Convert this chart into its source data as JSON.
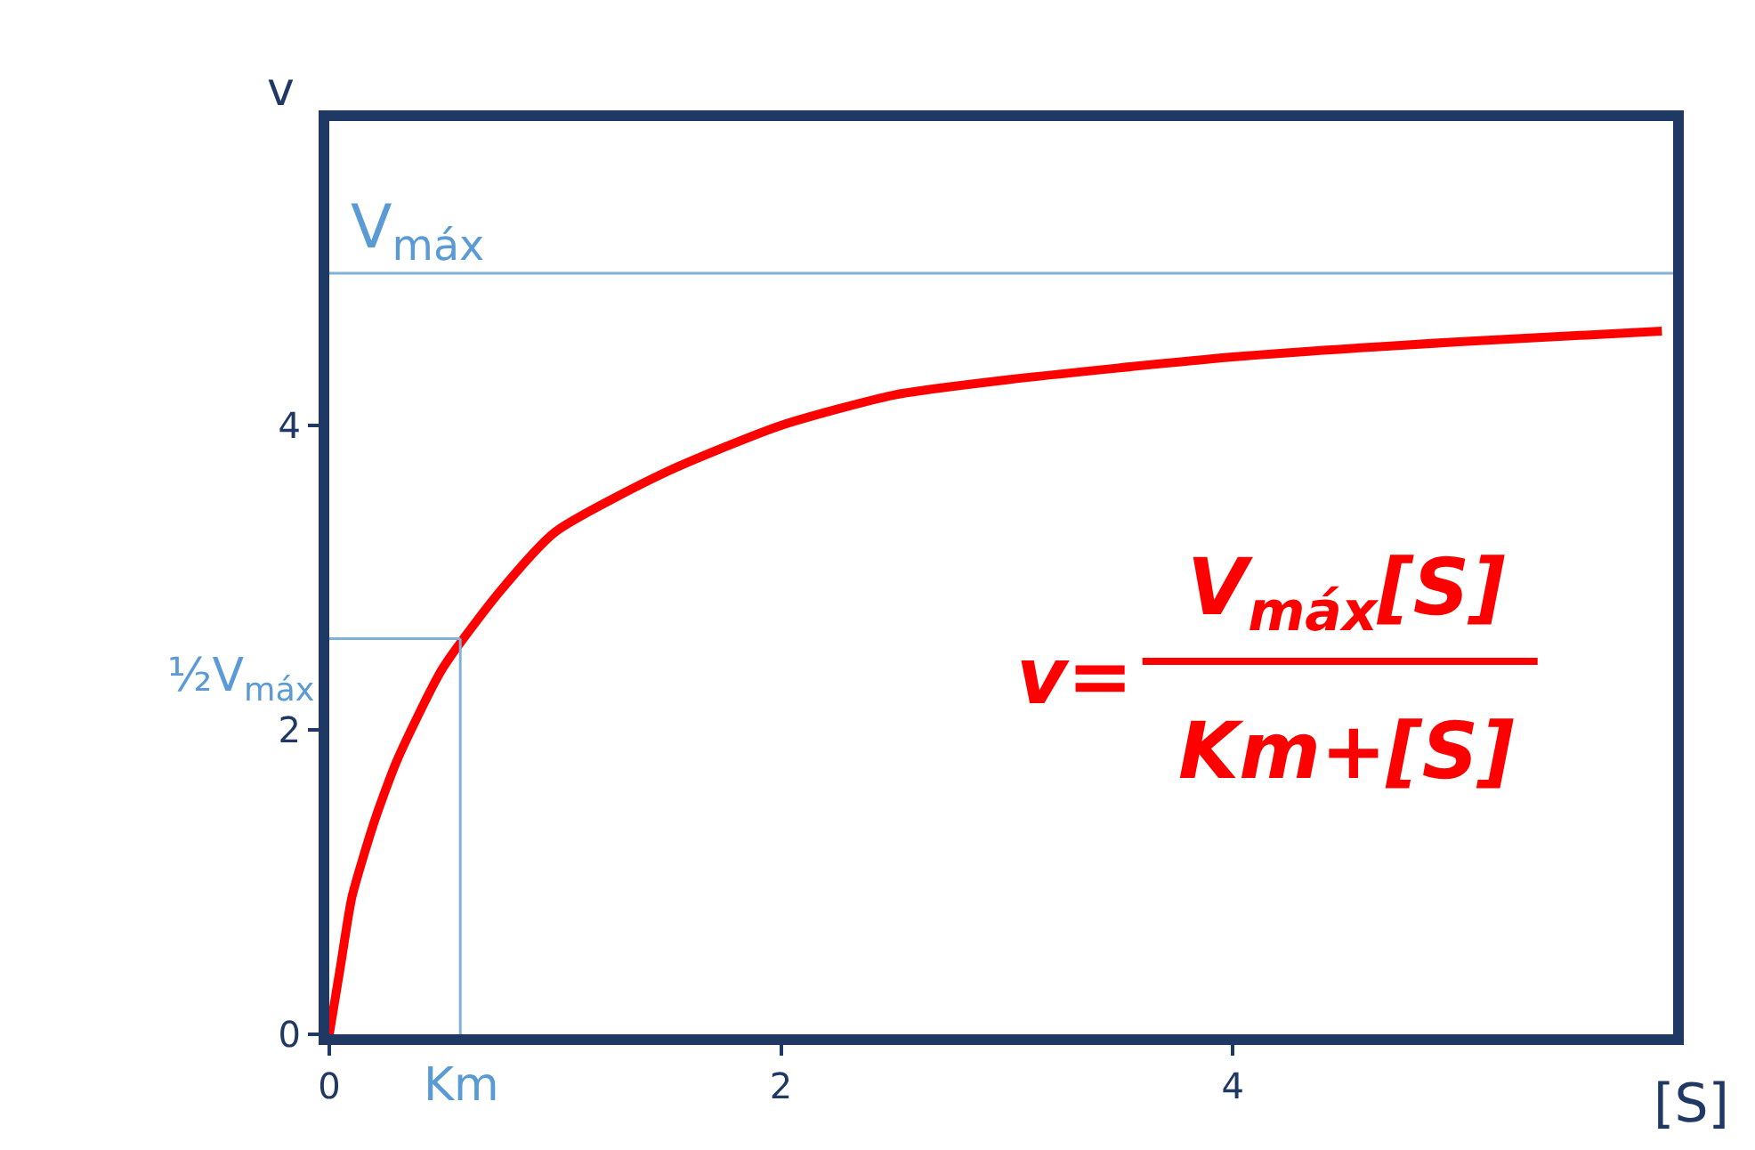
{
  "chart_data": {
    "type": "line",
    "xlabel": "[S]",
    "ylabel": "v",
    "x": [
      0,
      0.05,
      0.1,
      0.2,
      0.3,
      0.5,
      0.75,
      1,
      1.5,
      2,
      2.5,
      3,
      4,
      5,
      5.9
    ],
    "series": [
      {
        "color": "#ff0000",
        "values": [
          0,
          0.45,
          0.9,
          1.4,
          1.8,
          2.4,
          2.9,
          3.3,
          3.7,
          4.0,
          4.2,
          4.3,
          4.45,
          4.55,
          4.62
        ]
      }
    ],
    "xlim": [
      0,
      5.95
    ],
    "ylim": [
      0,
      6
    ],
    "xticks": [
      0,
      2,
      4
    ],
    "yticks": [
      0,
      2,
      4
    ],
    "grid": false,
    "marker": "none",
    "line_style": "solid",
    "ref_lines": [
      {
        "axis": "y",
        "value": 5,
        "label": "V$_{máx}$",
        "color": "#7fb2d6"
      },
      {
        "axis": "y",
        "value": 2.6,
        "label": "½V$_{máx}$",
        "color": "#7fb2d6"
      },
      {
        "axis": "x",
        "value": 0.58,
        "label": "Km",
        "color": "#7fb2d6"
      }
    ],
    "annotations": [
      "v=",
      "V$_{máx}$[S]",
      "Km+[S]"
    ]
  }
}
